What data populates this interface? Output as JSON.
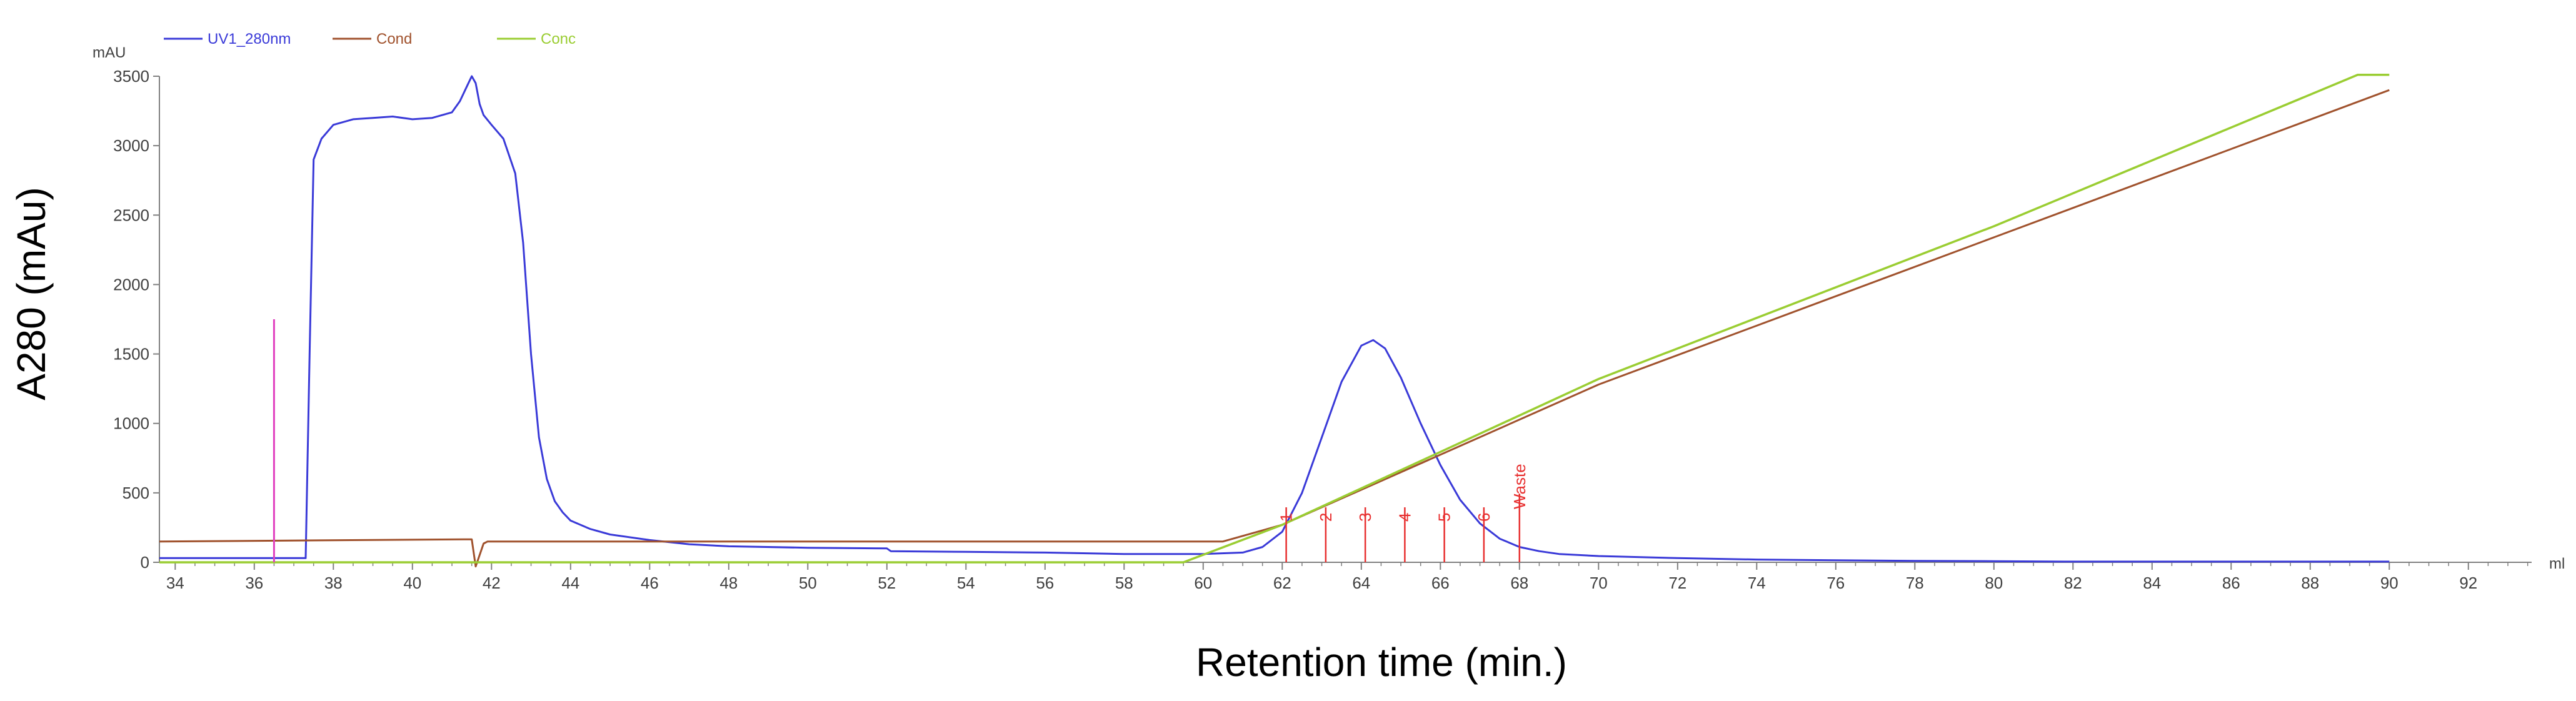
{
  "chart_data": {
    "type": "line",
    "ylabel": "A280 (mAu)",
    "xlabel": "Retention time (min.)",
    "y_unit_label": "mAU",
    "x_unit_label": "ml",
    "xlim": [
      33.6,
      93.6
    ],
    "ylim": [
      0,
      3500
    ],
    "x_ticks": [
      34,
      36,
      38,
      40,
      42,
      44,
      46,
      48,
      50,
      52,
      54,
      56,
      58,
      60,
      62,
      64,
      66,
      68,
      70,
      72,
      74,
      76,
      78,
      80,
      82,
      84,
      86,
      88,
      90,
      92
    ],
    "y_ticks": [
      0,
      500,
      1000,
      1500,
      2000,
      2500,
      3000,
      3500
    ],
    "x_tick_labels": [
      "34",
      "36",
      "38",
      "40",
      "42",
      "44",
      "46",
      "48",
      "50",
      "52",
      "54",
      "56",
      "58",
      "60",
      "62",
      "64",
      "66",
      "68",
      "70",
      "72",
      "74",
      "76",
      "78",
      "80",
      "82",
      "84",
      "86",
      "88",
      "90",
      "92"
    ],
    "y_tick_labels": [
      "0",
      "500",
      "1000",
      "1500",
      "2000",
      "2500",
      "3000",
      "3500"
    ],
    "legend_position": "top-left",
    "series": [
      {
        "name": "UV1_280nm",
        "color": "#3a3ad8",
        "x": [
          33.6,
          37.3,
          37.4,
          37.5,
          37.7,
          38.0,
          38.5,
          39.0,
          39.5,
          40.0,
          40.5,
          41.0,
          41.2,
          41.4,
          41.5,
          41.6,
          41.7,
          41.8,
          42.0,
          42.3,
          42.6,
          42.8,
          43.0,
          43.2,
          43.4,
          43.6,
          43.8,
          44.0,
          44.5,
          45.0,
          46.0,
          47.0,
          48.0,
          50.0,
          52.0,
          52.1,
          54.0,
          56.0,
          58.0,
          60.0,
          61.0,
          61.5,
          62.0,
          62.5,
          63.0,
          63.5,
          64.0,
          64.3,
          64.6,
          65.0,
          65.5,
          66.0,
          66.5,
          67.0,
          67.5,
          68.0,
          68.5,
          69.0,
          70.0,
          72.0,
          74.0,
          76.0,
          78.0,
          80.0,
          82.0,
          84.0,
          86.0,
          88.0,
          90.0
        ],
        "y": [
          30,
          30,
          1500,
          2900,
          3050,
          3150,
          3190,
          3200,
          3210,
          3190,
          3200,
          3240,
          3320,
          3440,
          3500,
          3450,
          3300,
          3220,
          3150,
          3050,
          2800,
          2300,
          1500,
          900,
          600,
          440,
          360,
          300,
          240,
          200,
          160,
          130,
          115,
          105,
          100,
          80,
          75,
          70,
          60,
          60,
          70,
          110,
          220,
          500,
          900,
          1300,
          1560,
          1600,
          1540,
          1330,
          1000,
          700,
          450,
          280,
          170,
          110,
          80,
          60,
          45,
          30,
          20,
          15,
          10,
          8,
          5,
          5,
          5,
          5,
          5
        ]
      },
      {
        "name": "Cond",
        "color": "#a0522d",
        "x": [
          33.6,
          41.3,
          41.5,
          41.6,
          41.8,
          41.9,
          42.0,
          60.5,
          62.0,
          70.0,
          80.0,
          90.0
        ],
        "y": [
          150,
          165,
          165,
          -30,
          135,
          150,
          150,
          150,
          270,
          1280,
          2340,
          3400
        ]
      },
      {
        "name": "Conc",
        "color": "#9acd32",
        "x": [
          33.6,
          59.5,
          62.0,
          70.0,
          80.0,
          89.2,
          90.0
        ],
        "y": [
          0,
          0,
          270,
          1320,
          2420,
          3510,
          3510
        ]
      },
      {
        "name": "Injection",
        "color": "#e040c0",
        "x": [
          36.5,
          36.5
        ],
        "y": [
          0,
          1750
        ]
      }
    ],
    "fractions": [
      {
        "label": "1",
        "x": 62.1
      },
      {
        "label": "2",
        "x": 63.1
      },
      {
        "label": "3",
        "x": 64.1
      },
      {
        "label": "4",
        "x": 65.1
      },
      {
        "label": "5",
        "x": 66.1
      },
      {
        "label": "6",
        "x": 67.1
      },
      {
        "label": "Waste",
        "x": 68.0
      }
    ]
  }
}
